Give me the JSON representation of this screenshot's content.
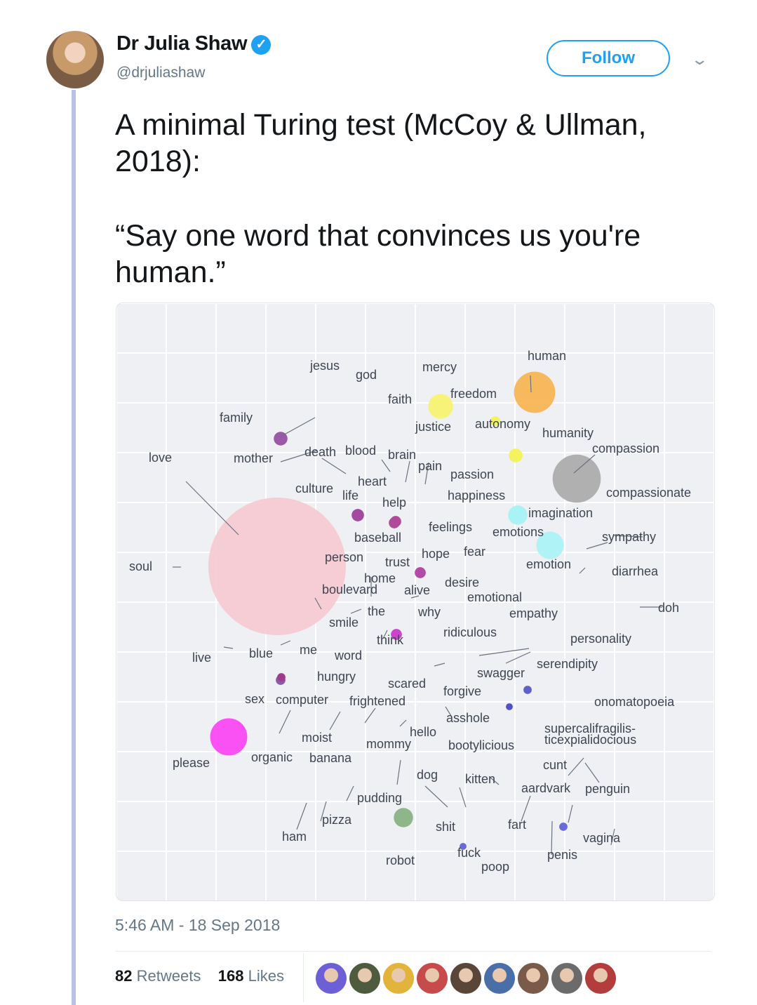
{
  "tweet": {
    "author_name": "Dr Julia Shaw",
    "verified_mark": "✓",
    "handle": "@drjuliashaw",
    "follow_label": "Follow",
    "more_icon": "chevron-down-icon",
    "text": "A minimal Turing test (McCoy & Ullman, 2018):",
    "quote": "“Say one word that convinces us you're human.”",
    "timestamp": "5:46 AM - 18 Sep 2018",
    "retweets_count": "82",
    "retweets_label": "Retweets",
    "likes_count": "168",
    "likes_label": "Likes"
  },
  "colors": {
    "accent": "#1da1f2",
    "muted": "#657786",
    "chart_background": "#eef0f3"
  },
  "likers": [
    {
      "color": "#6d5fd6"
    },
    {
      "color": "#4f5b3f"
    },
    {
      "color": "#e3b43b"
    },
    {
      "color": "#c84b4b"
    },
    {
      "color": "#5a4638"
    },
    {
      "color": "#4a6fa8"
    },
    {
      "color": "#7a5a48"
    },
    {
      "color": "#6b6b6b"
    },
    {
      "color": "#b33d3d"
    }
  ],
  "chart_data": {
    "type": "scatter",
    "bubbles": [
      {
        "color": "#f6c8d2",
        "size": 1.0
      },
      {
        "color": "#f7b24e",
        "size": 0.3
      },
      {
        "color": "#a9a9a9",
        "size": 0.35
      },
      {
        "color": "#fb3ff5",
        "size": 0.27
      },
      {
        "color": "#f7f36a",
        "size": 0.18
      },
      {
        "color": "#a9f3f6",
        "size": 0.2
      },
      {
        "color": "#a9f3f6",
        "size": 0.14
      },
      {
        "color": "#f4f35d",
        "size": 0.1
      },
      {
        "color": "#f4f35d",
        "size": 0.07
      },
      {
        "color": "#8fb58a",
        "size": 0.14
      },
      {
        "color": "#9a5aa8",
        "size": 0.1
      },
      {
        "color": "#a04aa0",
        "size": 0.09
      },
      {
        "color": "#b04a9a",
        "size": 0.08
      },
      {
        "color": "#b04a9a",
        "size": 0.08
      },
      {
        "color": "#b24aa8",
        "size": 0.08
      },
      {
        "color": "#cc44cc",
        "size": 0.08
      },
      {
        "color": "#8a5aa8",
        "size": 0.07
      },
      {
        "color": "#a03a8a",
        "size": 0.06
      },
      {
        "color": "#6a6ad8",
        "size": 0.06
      },
      {
        "color": "#6a6ad8",
        "size": 0.05
      },
      {
        "color": "#5050c8",
        "size": 0.05
      },
      {
        "color": "#6060c8",
        "size": 0.06
      }
    ],
    "words": [
      "human",
      "jesus",
      "god",
      "mercy",
      "faith",
      "freedom",
      "family",
      "justice",
      "autonomy",
      "humanity",
      "compassion",
      "love",
      "mother",
      "death",
      "blood",
      "brain",
      "pain",
      "passion",
      "heart",
      "culture",
      "life",
      "help",
      "happiness",
      "compassionate",
      "imagination",
      "feelings",
      "emotions",
      "baseball",
      "sympathy",
      "soul",
      "person",
      "trust",
      "hope",
      "fear",
      "emotion",
      "diarrhea",
      "home",
      "desire",
      "boulevard",
      "alive",
      "emotional",
      "the",
      "why",
      "doh",
      "smile",
      "empathy",
      "ridiculous",
      "think",
      "personality",
      "live",
      "blue",
      "me",
      "word",
      "serendipity",
      "swagger",
      "hungry",
      "scared",
      "sex",
      "computer",
      "frightened",
      "forgive",
      "onomatopoeia",
      "asshole",
      "hello",
      "supercalifragilis-",
      "ticexpialidocious",
      "moist",
      "mommy",
      "bootylicious",
      "please",
      "organic",
      "banana",
      "cunt",
      "dog",
      "kitten",
      "aardvark",
      "penguin",
      "pudding",
      "pizza",
      "shit",
      "fart",
      "ham",
      "vagina",
      "fuck",
      "penis",
      "robot",
      "poop"
    ]
  }
}
